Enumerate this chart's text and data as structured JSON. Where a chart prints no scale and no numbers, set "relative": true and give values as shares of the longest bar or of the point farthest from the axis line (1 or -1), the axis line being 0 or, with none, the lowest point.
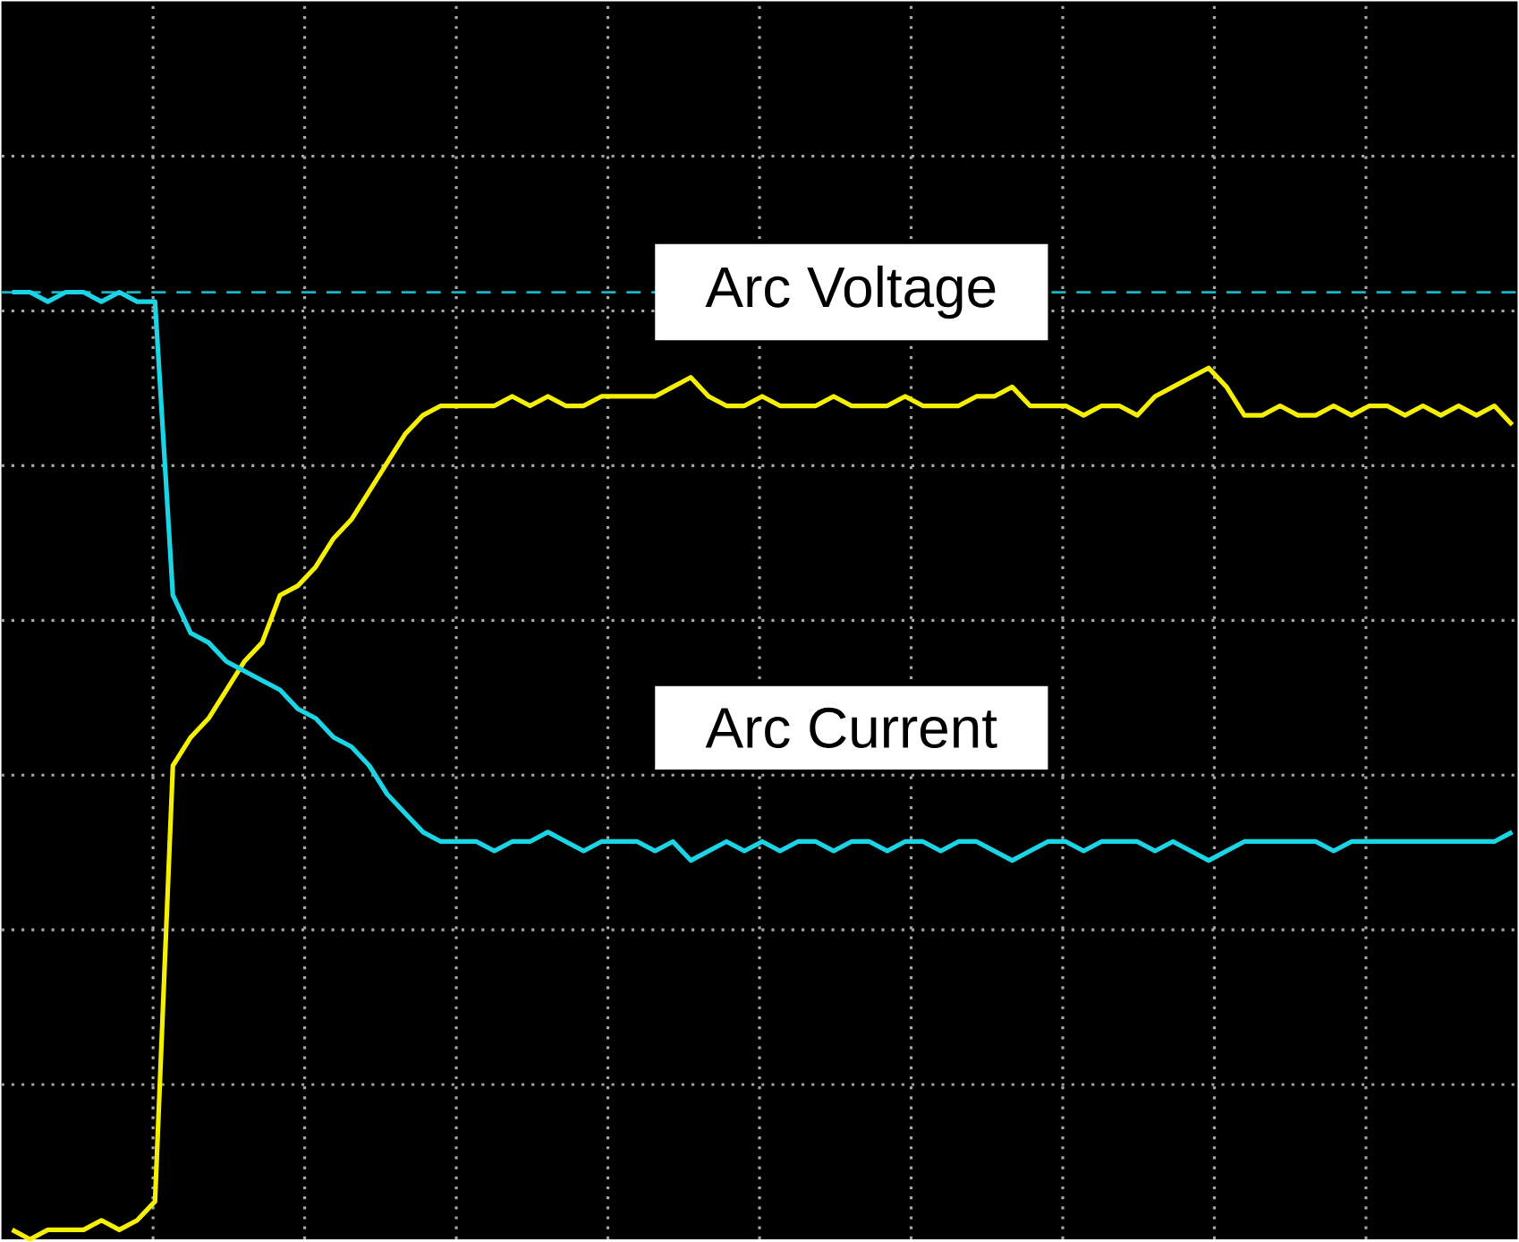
{
  "chart_data": {
    "type": "line",
    "relative": true,
    "grid": true,
    "legend": false,
    "categories": [
      null,
      null,
      null,
      null,
      null,
      null,
      null,
      null,
      null,
      null,
      null,
      null,
      null,
      null,
      null,
      null,
      null,
      null,
      null,
      null,
      null,
      null,
      null,
      null,
      null,
      null,
      null,
      null,
      null,
      null,
      null,
      null,
      null,
      null,
      null,
      null,
      null,
      null,
      null,
      null,
      null,
      null,
      null,
      null,
      null,
      null,
      null,
      null,
      null,
      null,
      null,
      null,
      null,
      null,
      null,
      null,
      null,
      null,
      null,
      null,
      null,
      null,
      null,
      null,
      null,
      null,
      null,
      null,
      null,
      null,
      null,
      null,
      null,
      null,
      null,
      null,
      null,
      null,
      null,
      null,
      null,
      null,
      null,
      null,
      null
    ],
    "series": [
      {
        "name": "Arc Voltage",
        "color": "#f5f000",
        "values": [
          0.01,
          0.0,
          0.01,
          0.01,
          0.01,
          0.02,
          0.01,
          0.02,
          0.04,
          0.5,
          0.53,
          0.55,
          0.58,
          0.61,
          0.63,
          0.68,
          0.69,
          0.71,
          0.74,
          0.76,
          0.79,
          0.82,
          0.85,
          0.87,
          0.88,
          0.88,
          0.88,
          0.88,
          0.89,
          0.88,
          0.89,
          0.88,
          0.88,
          0.89,
          0.89,
          0.89,
          0.89,
          0.9,
          0.91,
          0.89,
          0.88,
          0.88,
          0.89,
          0.88,
          0.88,
          0.88,
          0.89,
          0.88,
          0.88,
          0.88,
          0.89,
          0.88,
          0.88,
          0.88,
          0.89,
          0.89,
          0.9,
          0.88,
          0.88,
          0.88,
          0.87,
          0.88,
          0.88,
          0.87,
          0.89,
          0.9,
          0.91,
          0.92,
          0.9,
          0.87,
          0.87,
          0.88,
          0.87,
          0.87,
          0.88,
          0.87,
          0.88,
          0.88,
          0.87,
          0.88,
          0.87,
          0.88,
          0.87,
          0.88,
          0.86
        ]
      },
      {
        "name": "Arc Current",
        "color": "#1ad5e6",
        "values": [
          1.0,
          1.0,
          0.99,
          1.0,
          1.0,
          0.99,
          1.0,
          0.99,
          0.99,
          0.68,
          0.64,
          0.63,
          0.61,
          0.6,
          0.59,
          0.58,
          0.56,
          0.55,
          0.53,
          0.52,
          0.5,
          0.47,
          0.45,
          0.43,
          0.42,
          0.42,
          0.42,
          0.41,
          0.42,
          0.42,
          0.43,
          0.42,
          0.41,
          0.42,
          0.42,
          0.42,
          0.41,
          0.42,
          0.4,
          0.41,
          0.42,
          0.41,
          0.42,
          0.41,
          0.42,
          0.42,
          0.41,
          0.42,
          0.42,
          0.41,
          0.42,
          0.42,
          0.41,
          0.42,
          0.42,
          0.41,
          0.4,
          0.41,
          0.42,
          0.42,
          0.41,
          0.42,
          0.42,
          0.42,
          0.41,
          0.42,
          0.41,
          0.4,
          0.41,
          0.42,
          0.42,
          0.42,
          0.42,
          0.42,
          0.41,
          0.42,
          0.42,
          0.42,
          0.42,
          0.42,
          0.42,
          0.42,
          0.42,
          0.42,
          0.43
        ]
      }
    ],
    "ref_lines": [
      {
        "axis": "y",
        "value": 1.0,
        "color": "#19b5c5",
        "line_style": "dashed"
      }
    ]
  }
}
